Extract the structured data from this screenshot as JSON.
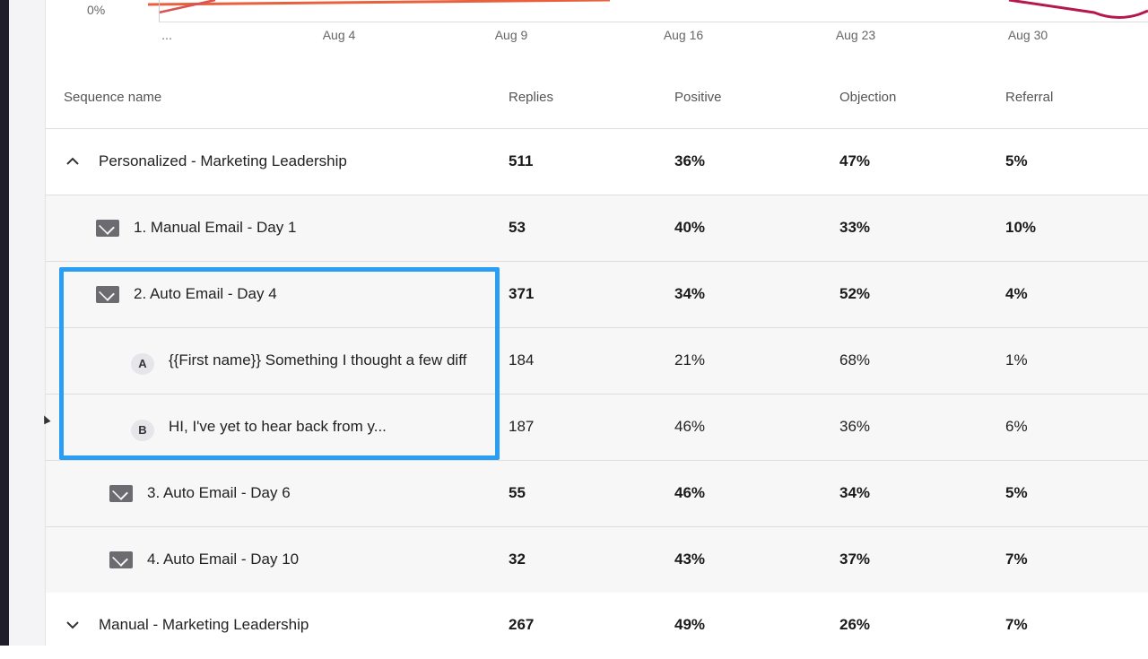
{
  "chart": {
    "y_tick": "0%",
    "x_ticks": [
      "...",
      "Aug 4",
      "Aug 9",
      "Aug 16",
      "Aug 23",
      "Aug 30"
    ],
    "colors": {
      "line_red": "#d9534f",
      "line_orange": "#e8603c",
      "line_crimson": "#b5174f"
    }
  },
  "table": {
    "headers": {
      "name": "Sequence name",
      "replies": "Replies",
      "positive": "Positive",
      "objection": "Objection",
      "referral": "Referral"
    },
    "rows": [
      {
        "name": "Personalized - Marketing Leadership",
        "replies": "511",
        "positive": "36%",
        "objection": "47%",
        "referral": "5%"
      },
      {
        "name": "1. Manual Email - Day 1",
        "replies": "53",
        "positive": "40%",
        "objection": "33%",
        "referral": "10%"
      },
      {
        "name": "2. Auto Email - Day 4",
        "replies": "371",
        "positive": "34%",
        "objection": "52%",
        "referral": "4%"
      },
      {
        "badge": "A",
        "name": "{{First name}} Something I thought a few diff",
        "replies": "184",
        "positive": "21%",
        "objection": "68%",
        "referral": "1%"
      },
      {
        "badge": "B",
        "name": "HI, I've yet to hear back from y...",
        "replies": "187",
        "positive": "46%",
        "objection": "36%",
        "referral": "6%"
      },
      {
        "name": "3. Auto Email - Day 6",
        "replies": "55",
        "positive": "46%",
        "objection": "34%",
        "referral": "5%"
      },
      {
        "name": "4. Auto Email - Day 10",
        "replies": "32",
        "positive": "43%",
        "objection": "37%",
        "referral": "7%"
      },
      {
        "name": "Manual - Marketing Leadership",
        "replies": "267",
        "positive": "49%",
        "objection": "26%",
        "referral": "7%"
      }
    ]
  },
  "highlight_color": "#2a9df4"
}
